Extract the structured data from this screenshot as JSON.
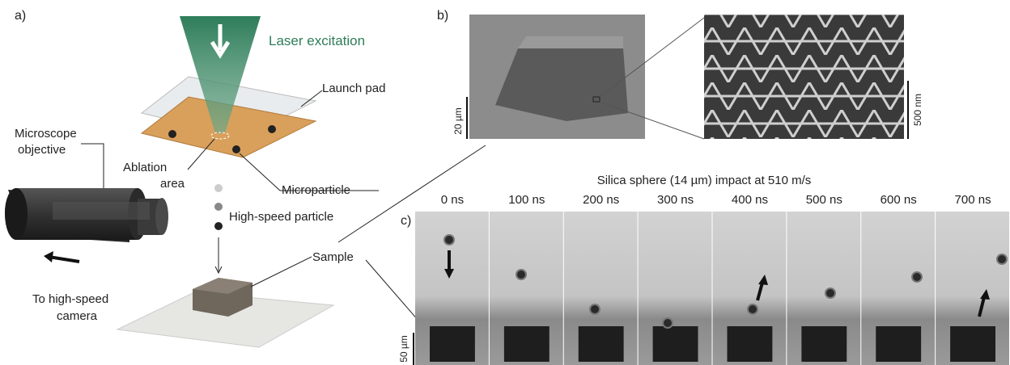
{
  "panel_a": {
    "label": "a)",
    "laser": "Laser excitation",
    "launch_pad": "Launch pad",
    "microscope_objective": [
      "Microscope",
      "objective"
    ],
    "ablation_area": [
      "Ablation",
      "area"
    ],
    "microparticle": "Microparticle",
    "high_speed_particle": "High-speed particle",
    "sample": "Sample",
    "camera": [
      "To high-speed",
      "camera"
    ]
  },
  "panel_b": {
    "label": "b)",
    "scale_left": "20 µm",
    "scale_right": "500 nm"
  },
  "panel_c": {
    "label": "c)",
    "title": "Silica sphere (14 µm) impact at 510 m/s",
    "times": [
      "0 ns",
      "100 ns",
      "200 ns",
      "300 ns",
      "400 ns",
      "500 ns",
      "600 ns",
      "700 ns"
    ],
    "scale": "50 µm"
  }
}
